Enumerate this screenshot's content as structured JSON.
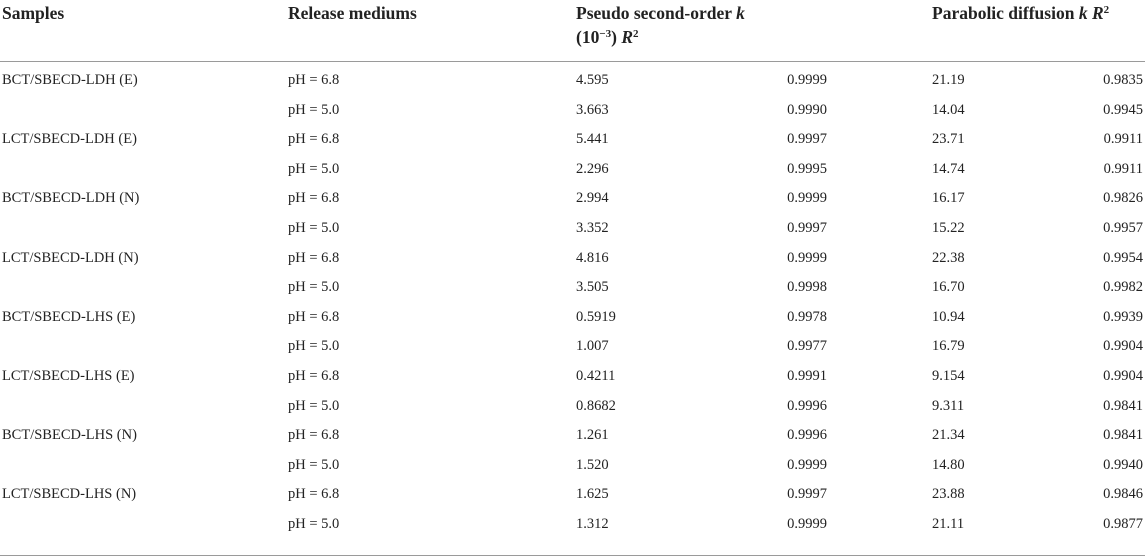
{
  "table": {
    "headers": {
      "samples": "Samples",
      "release_mediums": "Release mediums",
      "pseudo_second_order_prefix": "Pseudo second-order",
      "pseudo_second_order_k": "k",
      "pseudo_second_order_line2": "(10",
      "pseudo_second_order_exp": "−3",
      "pseudo_second_order_close": ")",
      "pseudo_second_order_r": "R",
      "pseudo_second_order_r_exp": "2",
      "parabolic_prefix": "Parabolic diffusion",
      "parabolic_k": "k",
      "parabolic_r": "R",
      "parabolic_r_exp": "2"
    },
    "rows": [
      {
        "sample": "BCT/SBECD-LDH (E)",
        "medium": "pH = 6.8",
        "k1": "4.595",
        "r1": "0.9999",
        "k2": "21.19",
        "r2": "0.9835"
      },
      {
        "sample": "",
        "medium": "pH = 5.0",
        "k1": "3.663",
        "r1": "0.9990",
        "k2": "14.04",
        "r2": "0.9945"
      },
      {
        "sample": "LCT/SBECD-LDH (E)",
        "medium": "pH = 6.8",
        "k1": "5.441",
        "r1": "0.9997",
        "k2": "23.71",
        "r2": "0.9911"
      },
      {
        "sample": "",
        "medium": "pH = 5.0",
        "k1": "2.296",
        "r1": "0.9995",
        "k2": "14.74",
        "r2": "0.9911"
      },
      {
        "sample": "BCT/SBECD-LDH (N)",
        "medium": "pH = 6.8",
        "k1": "2.994",
        "r1": "0.9999",
        "k2": "16.17",
        "r2": "0.9826"
      },
      {
        "sample": "",
        "medium": "pH = 5.0",
        "k1": "3.352",
        "r1": "0.9997",
        "k2": "15.22",
        "r2": "0.9957"
      },
      {
        "sample": "LCT/SBECD-LDH (N)",
        "medium": "pH = 6.8",
        "k1": "4.816",
        "r1": "0.9999",
        "k2": "22.38",
        "r2": "0.9954"
      },
      {
        "sample": "",
        "medium": "pH = 5.0",
        "k1": "3.505",
        "r1": "0.9998",
        "k2": "16.70",
        "r2": "0.9982"
      },
      {
        "sample": "BCT/SBECD-LHS (E)",
        "medium": "pH = 6.8",
        "k1": "0.5919",
        "r1": "0.9978",
        "k2": "10.94",
        "r2": "0.9939"
      },
      {
        "sample": "",
        "medium": "pH = 5.0",
        "k1": "1.007",
        "r1": "0.9977",
        "k2": "16.79",
        "r2": "0.9904"
      },
      {
        "sample": "LCT/SBECD-LHS (E)",
        "medium": "pH = 6.8",
        "k1": "0.4211",
        "r1": "0.9991",
        "k2": "9.154",
        "r2": "0.9904"
      },
      {
        "sample": "",
        "medium": "pH = 5.0",
        "k1": "0.8682",
        "r1": "0.9996",
        "k2": "9.311",
        "r2": "0.9841"
      },
      {
        "sample": "BCT/SBECD-LHS (N)",
        "medium": "pH = 6.8",
        "k1": "1.261",
        "r1": "0.9996",
        "k2": "21.34",
        "r2": "0.9841"
      },
      {
        "sample": "",
        "medium": "pH = 5.0",
        "k1": "1.520",
        "r1": "0.9999",
        "k2": "14.80",
        "r2": "0.9940"
      },
      {
        "sample": "LCT/SBECD-LHS (N)",
        "medium": "pH = 6.8",
        "k1": "1.625",
        "r1": "0.9997",
        "k2": "23.88",
        "r2": "0.9846"
      },
      {
        "sample": "",
        "medium": "pH = 5.0",
        "k1": "1.312",
        "r1": "0.9999",
        "k2": "21.11",
        "r2": "0.9877"
      }
    ]
  }
}
